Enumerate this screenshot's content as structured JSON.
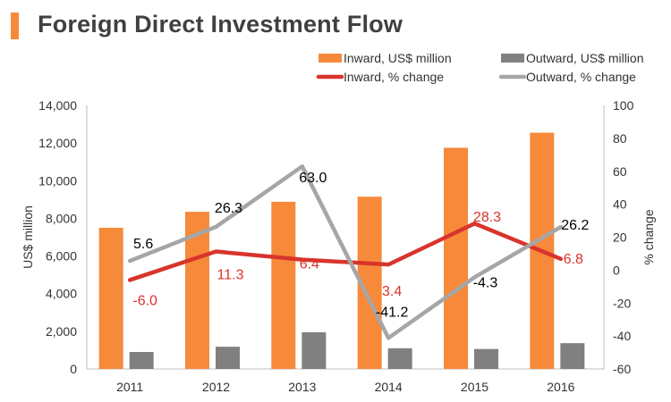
{
  "chart_data": {
    "type": "bar",
    "title": "Foreign Direct Investment Flow",
    "categories": [
      "2011",
      "2012",
      "2013",
      "2014",
      "2015",
      "2016"
    ],
    "ylabel": "US$ million",
    "y2label": "% change",
    "ylim": [
      0,
      14000
    ],
    "y2lim": [
      -60,
      100
    ],
    "yticks": [
      "0",
      "2,000",
      "4,000",
      "6,000",
      "8,000",
      "10,000",
      "12,000",
      "14,000"
    ],
    "y2ticks": [
      "-60",
      "-40",
      "-20",
      "0",
      "20",
      "40",
      "60",
      "80",
      "100"
    ],
    "series": [
      {
        "name": "Inward, US$ million",
        "kind": "bar",
        "axis": "left",
        "color": "#f7893b",
        "values": [
          7500,
          8350,
          8880,
          9150,
          11750,
          12550
        ]
      },
      {
        "name": "Outward, US$ million",
        "kind": "bar",
        "axis": "left",
        "color": "#808080",
        "values": [
          900,
          1180,
          1950,
          1100,
          1060,
          1370
        ]
      },
      {
        "name": "Inward, % change",
        "kind": "line",
        "axis": "right",
        "color": "#d9342b",
        "values": [
          -6.0,
          11.3,
          6.4,
          3.4,
          28.3,
          6.8
        ],
        "labels": [
          "-6.0",
          "11.3",
          "6.4",
          "3.4",
          "28.3",
          "6.8"
        ]
      },
      {
        "name": "Outward, % change",
        "kind": "line",
        "axis": "right",
        "color": "#a6a6a6",
        "values": [
          5.6,
          26.3,
          63.0,
          -41.2,
          -4.3,
          26.2
        ],
        "labels": [
          "5.6",
          "26.3",
          "63.0",
          "-41.2",
          "-4.3",
          "26.2"
        ]
      }
    ],
    "legend_position": "top-right",
    "grid": false
  }
}
